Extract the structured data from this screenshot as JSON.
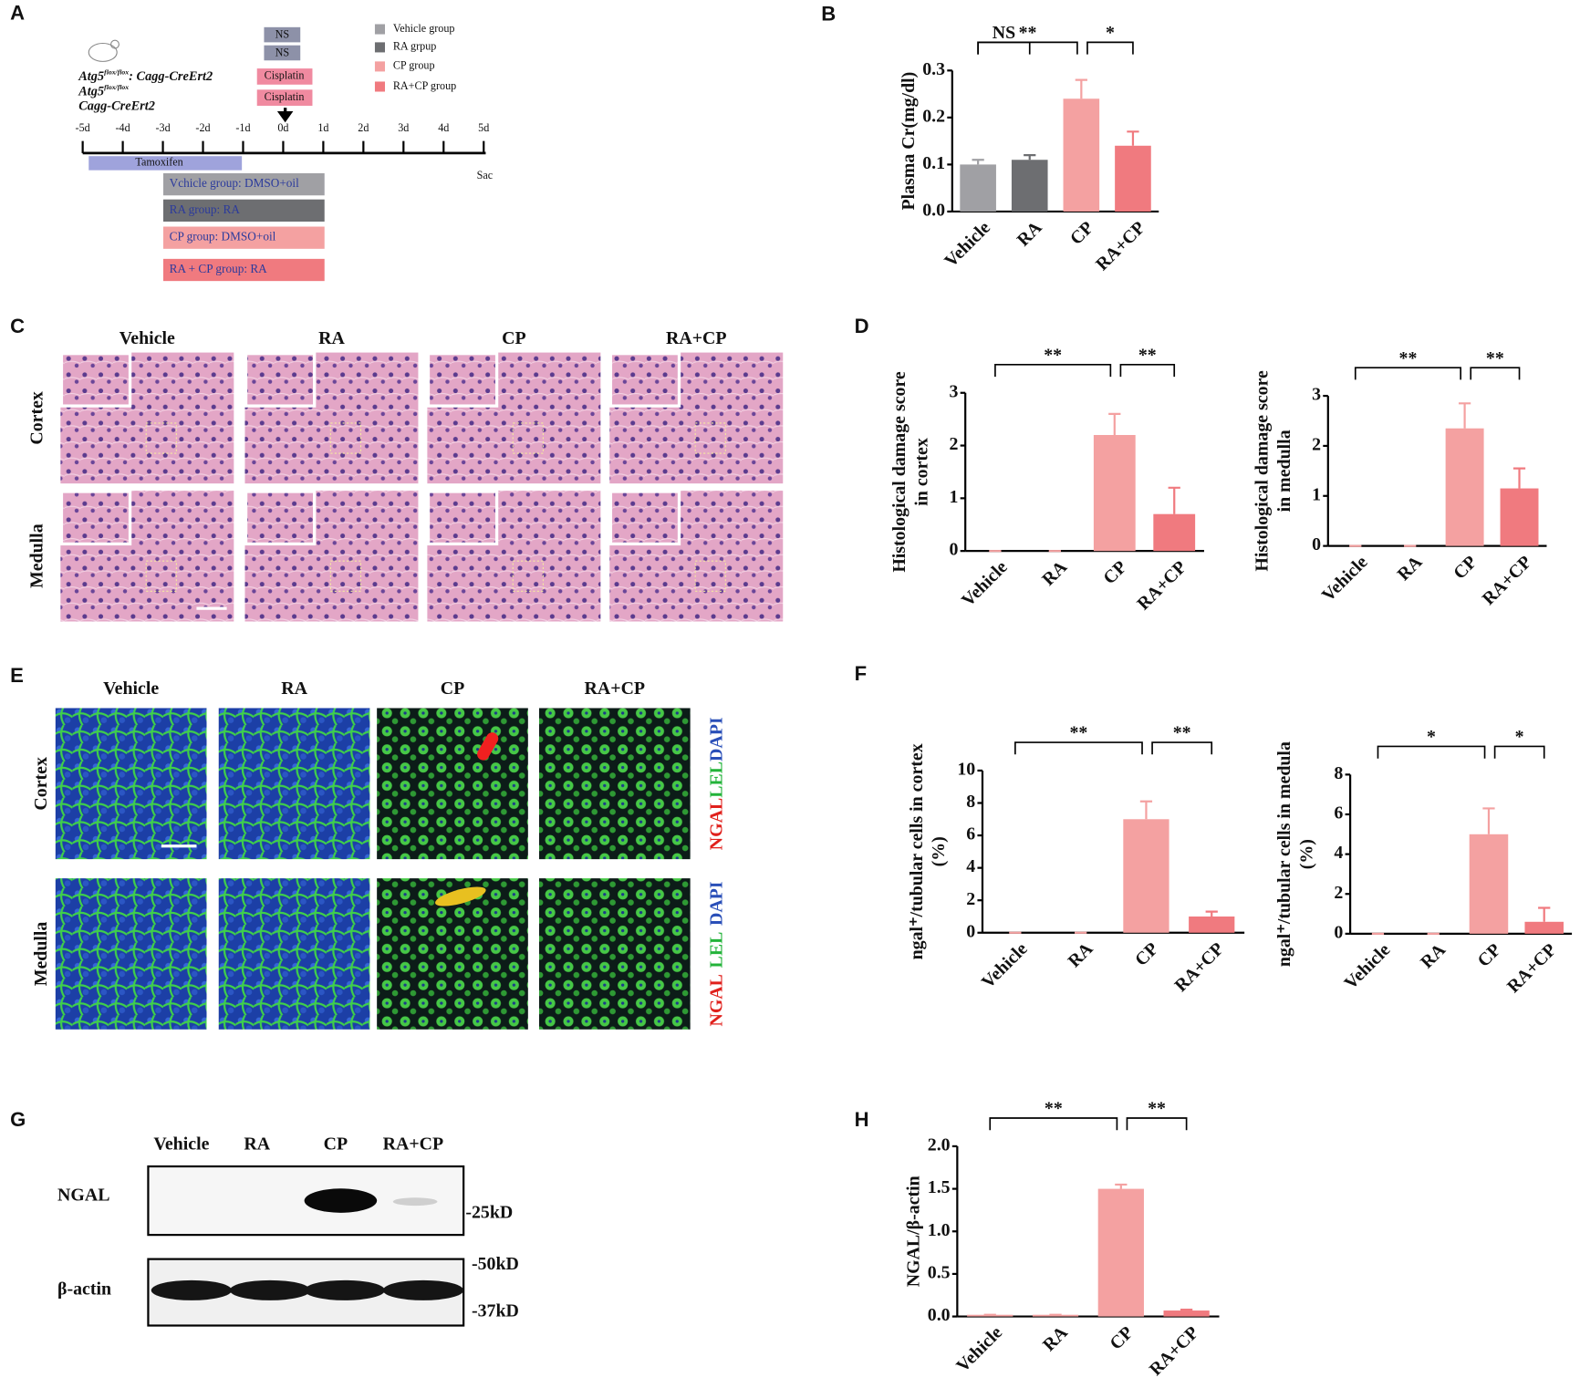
{
  "panel_labels": [
    "A",
    "B",
    "C",
    "D",
    "E",
    "F",
    "G",
    "H"
  ],
  "panel_a": {
    "legend": [
      {
        "name": "Vehicle group",
        "color": "#a0a0a4"
      },
      {
        "name": "RA grpup",
        "color": "#6d6e71"
      },
      {
        "name": "CP group",
        "color": "#f4a1a1"
      },
      {
        "name": "RA+CP group",
        "color": "#f07a7f"
      }
    ],
    "genotype_1": [
      "Atg5",
      "flox/flox",
      ": Cagg-CreErt2"
    ],
    "genotype_2": [
      "Atg5",
      "flox/flox"
    ],
    "genotype_3": "Cagg-CreErt2",
    "ns_boxes": [
      "NS",
      "NS"
    ],
    "cisplatin_boxes": [
      "Cisplatin",
      "Cisplatin"
    ],
    "days": [
      "-5d",
      "-4d",
      "-3d",
      "-2d",
      "-1d",
      "0d",
      "1d",
      "2d",
      "3d",
      "4d",
      "5d"
    ],
    "tamoxifen": "Tamoxifen",
    "groups": [
      "Vchicle group: DMSO+oil",
      "RA group: RA",
      "CP group: DMSO+oil",
      "RA + CP group: RA"
    ],
    "sac": "Sac"
  },
  "panel_c": {
    "columns": [
      "Vehicle",
      "RA",
      "CP",
      "RA+CP"
    ],
    "rows": [
      "Cortex",
      "Medulla"
    ]
  },
  "panel_e": {
    "columns": [
      "Vehicle",
      "RA",
      "CP",
      "RA+CP"
    ],
    "rows": [
      "Cortex",
      "Medulla"
    ],
    "stain_labels": [
      [
        "NGAL",
        "LEL",
        "DAPI"
      ],
      [
        "NGAL",
        "LEL",
        "DAPI"
      ]
    ]
  },
  "panel_g": {
    "columns": [
      "Vehicle",
      "RA",
      "CP",
      "RA+CP"
    ],
    "bands": [
      "NGAL",
      "β-actin"
    ],
    "markers": [
      "-25kD",
      "-50kD",
      "-37kD"
    ]
  },
  "chart_data": [
    {
      "type": "bar",
      "y_label": [
        "Plasma Cr(mg/dl)"
      ],
      "categories": [
        "Vehicle",
        "RA",
        "CP",
        "RA+CP"
      ],
      "values": [
        0.1,
        0.11,
        0.24,
        0.14
      ],
      "errors": [
        0.01,
        0.01,
        0.04,
        0.03
      ],
      "colors": [
        "#a0a0a4",
        "#6d6e71",
        "#f4a1a1",
        "#f07a7f"
      ],
      "ylim": [
        0,
        0.3
      ],
      "yticks": [
        {
          "value": 0,
          "label": "0.0"
        },
        0.1,
        0.2,
        0.3
      ],
      "annotations": [
        {
          "text": "NS",
          "from": "Vehicle",
          "to": "RA"
        },
        {
          "text": "**",
          "from": "Vehicle",
          "to": "CP"
        },
        {
          "text": "*",
          "from": "CP",
          "to": "RA+CP"
        }
      ]
    },
    {
      "type": "bar",
      "y_label": [
        "Histological damage score",
        "in cortex"
      ],
      "categories": [
        "Vehicle",
        "RA",
        "CP",
        "RA+CP"
      ],
      "values": [
        0,
        0,
        2.2,
        0.7
      ],
      "errors": [
        0,
        0,
        0.4,
        0.5
      ],
      "colors": [
        "#f4a1a1",
        "#f4a1a1",
        "#f4a1a1",
        "#f07a7f"
      ],
      "ylim": [
        0,
        3
      ],
      "yticks": [
        0,
        1,
        2,
        3
      ],
      "annotations": [
        {
          "text": "**",
          "from": "Vehicle",
          "to": "CP"
        },
        {
          "text": "**",
          "from": "CP",
          "to": "RA+CP"
        }
      ]
    },
    {
      "type": "bar",
      "y_label": [
        "Histological damage score",
        "in medulla"
      ],
      "categories": [
        "Vehicle",
        "RA",
        "CP",
        "RA+CP"
      ],
      "values": [
        0,
        0,
        2.35,
        1.15
      ],
      "errors": [
        0,
        0,
        0.5,
        0.4
      ],
      "colors": [
        "#f4a1a1",
        "#f4a1a1",
        "#f4a1a1",
        "#f07a7f"
      ],
      "ylim": [
        0,
        3
      ],
      "yticks": [
        0,
        1,
        2,
        3
      ],
      "annotations": [
        {
          "text": "**",
          "from": "Vehicle",
          "to": "CP"
        },
        {
          "text": "**",
          "from": "CP",
          "to": "RA+CP"
        }
      ]
    },
    {
      "type": "bar",
      "y_label": [
        "ngal⁺/tubular cells in cortex",
        "(%)"
      ],
      "categories": [
        "Vehicle",
        "RA",
        "CP",
        "RA+CP"
      ],
      "values": [
        0,
        0,
        7,
        1
      ],
      "errors": [
        0,
        0,
        1.1,
        0.3
      ],
      "colors": [
        "#f4a1a1",
        "#f4a1a1",
        "#f4a1a1",
        "#f07a7f"
      ],
      "ylim": [
        0,
        10
      ],
      "yticks": [
        0,
        2,
        4,
        6,
        8,
        10
      ],
      "annotations": [
        {
          "text": "**",
          "from": "Vehicle",
          "to": "CP"
        },
        {
          "text": "**",
          "from": "CP",
          "to": "RA+CP"
        }
      ]
    },
    {
      "type": "bar",
      "y_label": [
        "ngal⁺/tubular cells in medula",
        "(%)"
      ],
      "categories": [
        "Vehicle",
        "RA",
        "CP",
        "RA+CP"
      ],
      "values": [
        0,
        0,
        5,
        0.6
      ],
      "errors": [
        0,
        0,
        1.3,
        0.7
      ],
      "colors": [
        "#f4a1a1",
        "#f4a1a1",
        "#f4a1a1",
        "#f07a7f"
      ],
      "ylim": [
        0,
        8
      ],
      "yticks": [
        0,
        2,
        4,
        6,
        8
      ],
      "annotations": [
        {
          "text": "*",
          "from": "Vehicle",
          "to": "CP"
        },
        {
          "text": "*",
          "from": "CP",
          "to": "RA+CP"
        }
      ]
    },
    {
      "type": "bar",
      "y_label": [
        "NGAL/β-actin"
      ],
      "categories": [
        "Vehicle",
        "RA",
        "CP",
        "RA+CP"
      ],
      "values": [
        0.02,
        0.02,
        1.5,
        0.07
      ],
      "errors": [
        0,
        0,
        0.05,
        0.01
      ],
      "colors": [
        "#f4a1a1",
        "#f4a1a1",
        "#f4a1a1",
        "#f07a7f"
      ],
      "ylim": [
        0,
        2
      ],
      "yticks": [
        {
          "value": 0,
          "label": "0.0"
        },
        0.5,
        {
          "value": 1,
          "label": "1.0"
        },
        1.5,
        {
          "value": 2,
          "label": "2.0"
        }
      ],
      "annotations": [
        {
          "text": "**",
          "from": "Vehicle",
          "to": "CP"
        },
        {
          "text": "**",
          "from": "CP",
          "to": "RA+CP"
        }
      ]
    }
  ]
}
